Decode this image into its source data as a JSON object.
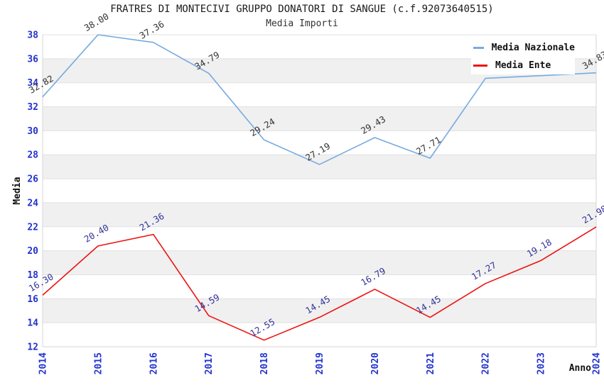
{
  "page": {
    "background": "#ffffff"
  },
  "chart_data": {
    "type": "line",
    "title": "FRATRES DI MONTECIVI GRUPPO DONATORI DI SANGUE (c.f.92073640515)",
    "subtitle": "Media Importi",
    "xlabel": "Anno",
    "ylabel": "Media",
    "categories": [
      "2014",
      "2015",
      "2016",
      "2017",
      "2018",
      "2019",
      "2020",
      "2021",
      "2022",
      "2023",
      "2024"
    ],
    "yticks": [
      12,
      14,
      16,
      18,
      20,
      22,
      24,
      26,
      28,
      30,
      32,
      34,
      36,
      38
    ],
    "ylim": [
      12,
      38
    ],
    "grid": "horizontal",
    "striped_bands": true,
    "legend": {
      "position": "top-right",
      "background": "#ffffff"
    },
    "series": [
      {
        "name": "Media Nazionale",
        "color": "#76abdf",
        "label_color": "#333333",
        "values": [
          32.82,
          38.0,
          37.36,
          34.79,
          29.24,
          27.19,
          29.43,
          27.71,
          34.37,
          34.59,
          34.83
        ]
      },
      {
        "name": "Media Ente",
        "color": "#ee1111",
        "label_color": "#333399",
        "values": [
          16.3,
          20.4,
          21.36,
          14.59,
          12.55,
          14.45,
          16.79,
          14.45,
          17.27,
          19.18,
          21.98
        ]
      }
    ],
    "colors": {
      "axis_tick": "#2233cc",
      "stripe": "#f0f0f0",
      "gridline": "#e1e1e1",
      "border": "#d6d6d6",
      "title": "#1a1a1a"
    }
  }
}
